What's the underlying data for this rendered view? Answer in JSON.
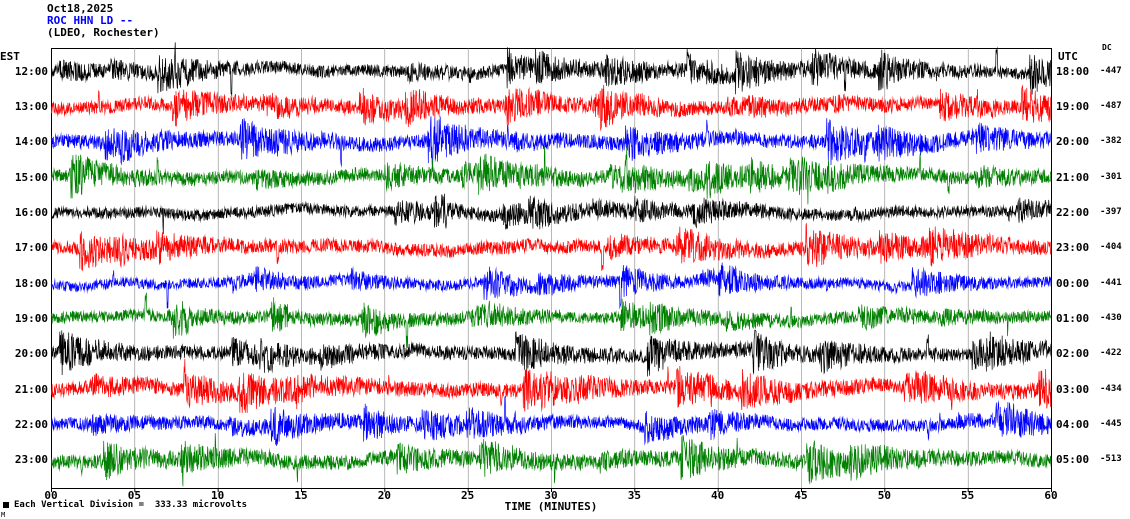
{
  "header": {
    "date": "Oct18,2025",
    "station": "ROC HHN LD --",
    "location": "(LDEO, Rochester)",
    "station_color": "#0000ff"
  },
  "axes": {
    "left_label": "EST",
    "right_label": "UTC",
    "dc_label": "DC",
    "xlabel": "TIME (MINUTES)",
    "x_ticks": [
      "00",
      "05",
      "10",
      "15",
      "20",
      "25",
      "30",
      "35",
      "40",
      "45",
      "50",
      "55",
      "60"
    ]
  },
  "footer": {
    "scale_note": "Each Vertical Division =  333.33 microvolts",
    "corner_mark": "M"
  },
  "chart_data": {
    "type": "line",
    "subtype": "helicorder-seismogram",
    "title": "ROC HHN LD -- (LDEO, Rochester) Oct18,2025",
    "xlabel": "TIME (MINUTES)",
    "xlim_minutes": [
      0,
      60
    ],
    "x_tick_interval_minutes": 5,
    "vertical_division_microvolts": 333.33,
    "trace_color_cycle": [
      "#000000",
      "#ff0000",
      "#0000ff",
      "#008000"
    ],
    "rows": [
      {
        "est": "12:00",
        "utc": "18:00",
        "dc": "-447",
        "color": "#000000"
      },
      {
        "est": "13:00",
        "utc": "19:00",
        "dc": "-487",
        "color": "#ff0000"
      },
      {
        "est": "14:00",
        "utc": "20:00",
        "dc": "-382",
        "color": "#0000ff"
      },
      {
        "est": "15:00",
        "utc": "21:00",
        "dc": "-301",
        "color": "#008000"
      },
      {
        "est": "16:00",
        "utc": "22:00",
        "dc": "-397",
        "color": "#000000"
      },
      {
        "est": "17:00",
        "utc": "23:00",
        "dc": "-404",
        "color": "#ff0000"
      },
      {
        "est": "18:00",
        "utc": "00:00",
        "dc": "-441",
        "color": "#0000ff"
      },
      {
        "est": "19:00",
        "utc": "01:00",
        "dc": "-430",
        "color": "#008000"
      },
      {
        "est": "20:00",
        "utc": "02:00",
        "dc": "-422",
        "color": "#000000"
      },
      {
        "est": "21:00",
        "utc": "03:00",
        "dc": "-434",
        "color": "#ff0000"
      },
      {
        "est": "22:00",
        "utc": "04:00",
        "dc": "-445",
        "color": "#0000ff"
      },
      {
        "est": "23:00",
        "utc": "05:00",
        "dc": "-513",
        "color": "#008000"
      }
    ]
  }
}
